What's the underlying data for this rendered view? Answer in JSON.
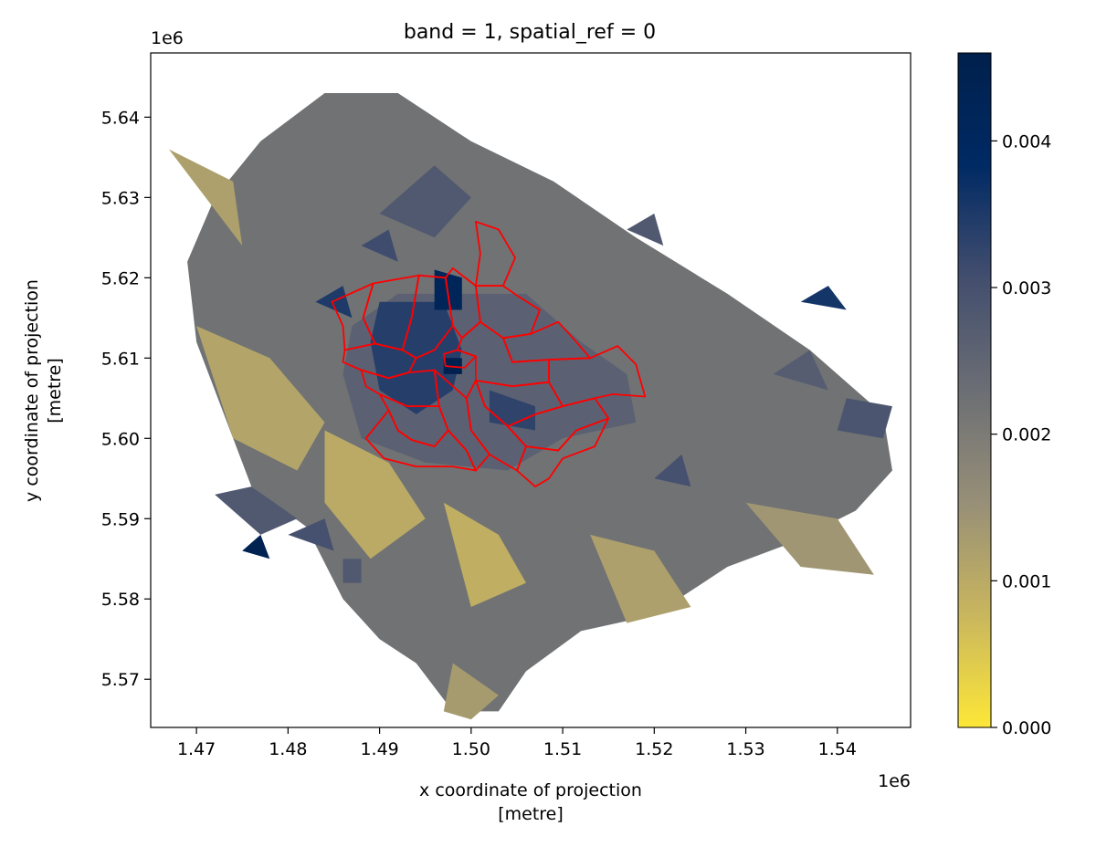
{
  "chart_data": {
    "type": "heatmap",
    "title": "band = 1, spatial_ref = 0",
    "xlabel": [
      "x coordinate of projection",
      "[metre]"
    ],
    "ylabel": [
      "y coordinate of projection",
      "[metre]"
    ],
    "x_offset_label": "1e6",
    "y_offset_label": "1e6",
    "xlim": [
      1.465,
      1.548
    ],
    "ylim": [
      5.564,
      5.648
    ],
    "x_ticks": [
      1.47,
      1.48,
      1.49,
      1.5,
      1.51,
      1.52,
      1.53,
      1.54
    ],
    "x_tick_labels": [
      "1.47",
      "1.48",
      "1.49",
      "1.50",
      "1.51",
      "1.52",
      "1.53",
      "1.54"
    ],
    "y_ticks": [
      5.57,
      5.58,
      5.59,
      5.6,
      5.61,
      5.62,
      5.63,
      5.64
    ],
    "y_tick_labels": [
      "5.57",
      "5.58",
      "5.59",
      "5.60",
      "5.61",
      "5.62",
      "5.63",
      "5.64"
    ],
    "colorbar": {
      "colormap": "cividis_r",
      "range": [
        0,
        0.0046
      ],
      "ticks": [
        0,
        0.001,
        0.002,
        0.003,
        0.004
      ],
      "tick_labels": [
        "0.000",
        "0.001",
        "0.002",
        "0.003",
        "0.004"
      ],
      "colors": [
        "#fde738",
        "#c9b65e",
        "#978f77",
        "#6b6e74",
        "#434e6e",
        "#002a64",
        "#00204c"
      ]
    },
    "grid": false,
    "overlay_color": "#ff0000",
    "regions": [
      {
        "value": 0.0022,
        "pts": [
          [
            1.473,
            5.603
          ],
          [
            1.476,
            5.594
          ],
          [
            1.482,
            5.589
          ],
          [
            1.486,
            5.58
          ],
          [
            1.49,
            5.575
          ],
          [
            1.494,
            5.572
          ],
          [
            1.498,
            5.566
          ],
          [
            1.503,
            5.566
          ],
          [
            1.506,
            5.571
          ],
          [
            1.512,
            5.576
          ],
          [
            1.52,
            5.578
          ],
          [
            1.528,
            5.584
          ],
          [
            1.535,
            5.587
          ],
          [
            1.542,
            5.591
          ],
          [
            1.546,
            5.596
          ],
          [
            1.545,
            5.603
          ],
          [
            1.537,
            5.611
          ],
          [
            1.528,
            5.618
          ],
          [
            1.518,
            5.625
          ],
          [
            1.509,
            5.632
          ],
          [
            1.5,
            5.637
          ],
          [
            1.492,
            5.643
          ],
          [
            1.484,
            5.643
          ],
          [
            1.477,
            5.637
          ],
          [
            1.472,
            5.63
          ],
          [
            1.469,
            5.622
          ],
          [
            1.47,
            5.612
          ]
        ]
      },
      {
        "value": 0.0012,
        "pts": [
          [
            1.467,
            5.636
          ],
          [
            1.471,
            5.63
          ],
          [
            1.475,
            5.624
          ],
          [
            1.474,
            5.632
          ]
        ]
      },
      {
        "value": 0.0011,
        "pts": [
          [
            1.47,
            5.614
          ],
          [
            1.478,
            5.61
          ],
          [
            1.484,
            5.602
          ],
          [
            1.481,
            5.596
          ],
          [
            1.474,
            5.6
          ]
        ]
      },
      {
        "value": 0.001,
        "pts": [
          [
            1.484,
            5.601
          ],
          [
            1.491,
            5.597
          ],
          [
            1.495,
            5.59
          ],
          [
            1.489,
            5.585
          ],
          [
            1.484,
            5.592
          ]
        ]
      },
      {
        "value": 0.0009,
        "pts": [
          [
            1.497,
            5.592
          ],
          [
            1.503,
            5.588
          ],
          [
            1.506,
            5.582
          ],
          [
            1.5,
            5.579
          ]
        ]
      },
      {
        "value": 0.0012,
        "pts": [
          [
            1.513,
            5.588
          ],
          [
            1.52,
            5.586
          ],
          [
            1.524,
            5.579
          ],
          [
            1.517,
            5.577
          ]
        ]
      },
      {
        "value": 0.0014,
        "pts": [
          [
            1.53,
            5.592
          ],
          [
            1.54,
            5.59
          ],
          [
            1.544,
            5.583
          ],
          [
            1.536,
            5.584
          ]
        ]
      },
      {
        "value": 0.0013,
        "pts": [
          [
            1.498,
            5.572
          ],
          [
            1.503,
            5.568
          ],
          [
            1.5,
            5.565
          ],
          [
            1.497,
            5.566
          ]
        ]
      },
      {
        "value": 0.0028,
        "pts": [
          [
            1.49,
            5.628
          ],
          [
            1.496,
            5.625
          ],
          [
            1.5,
            5.63
          ],
          [
            1.496,
            5.634
          ]
        ]
      },
      {
        "value": 0.0028,
        "pts": [
          [
            1.517,
            5.626
          ],
          [
            1.521,
            5.624
          ],
          [
            1.52,
            5.628
          ]
        ]
      },
      {
        "value": 0.0027,
        "pts": [
          [
            1.533,
            5.608
          ],
          [
            1.539,
            5.606
          ],
          [
            1.537,
            5.611
          ]
        ]
      },
      {
        "value": 0.0036,
        "pts": [
          [
            1.536,
            5.617
          ],
          [
            1.541,
            5.616
          ],
          [
            1.539,
            5.619
          ]
        ]
      },
      {
        "value": 0.0029,
        "pts": [
          [
            1.54,
            5.601
          ],
          [
            1.545,
            5.6
          ],
          [
            1.546,
            5.604
          ],
          [
            1.541,
            5.605
          ]
        ]
      },
      {
        "value": 0.003,
        "pts": [
          [
            1.52,
            5.595
          ],
          [
            1.524,
            5.594
          ],
          [
            1.523,
            5.598
          ]
        ]
      },
      {
        "value": 0.0028,
        "pts": [
          [
            1.472,
            5.593
          ],
          [
            1.477,
            5.588
          ],
          [
            1.481,
            5.59
          ],
          [
            1.476,
            5.594
          ]
        ]
      },
      {
        "value": 0.003,
        "pts": [
          [
            1.48,
            5.588
          ],
          [
            1.485,
            5.586
          ],
          [
            1.484,
            5.59
          ]
        ]
      },
      {
        "value": 0.0028,
        "pts": [
          [
            1.486,
            5.582
          ],
          [
            1.488,
            5.582
          ],
          [
            1.488,
            5.585
          ],
          [
            1.486,
            5.585
          ]
        ]
      },
      {
        "value": 0.0044,
        "pts": [
          [
            1.475,
            5.586
          ],
          [
            1.478,
            5.585
          ],
          [
            1.477,
            5.588
          ]
        ]
      },
      {
        "value": 0.0035,
        "pts": [
          [
            1.483,
            5.617
          ],
          [
            1.487,
            5.615
          ],
          [
            1.486,
            5.619
          ]
        ]
      },
      {
        "value": 0.0031,
        "pts": [
          [
            1.488,
            5.624
          ],
          [
            1.492,
            5.622
          ],
          [
            1.491,
            5.626
          ]
        ]
      },
      {
        "value": 0.0026,
        "pts": [
          [
            1.492,
            5.618
          ],
          [
            1.506,
            5.618
          ],
          [
            1.512,
            5.612
          ],
          [
            1.517,
            5.608
          ],
          [
            1.518,
            5.602
          ],
          [
            1.51,
            5.6
          ],
          [
            1.504,
            5.596
          ],
          [
            1.495,
            5.597
          ],
          [
            1.488,
            5.6
          ],
          [
            1.486,
            5.608
          ],
          [
            1.487,
            5.614
          ]
        ]
      },
      {
        "value": 0.0034,
        "pts": [
          [
            1.49,
            5.617
          ],
          [
            1.497,
            5.617
          ],
          [
            1.499,
            5.611
          ],
          [
            1.498,
            5.606
          ],
          [
            1.494,
            5.603
          ],
          [
            1.49,
            5.606
          ],
          [
            1.489,
            5.612
          ]
        ]
      },
      {
        "value": 0.0042,
        "pts": [
          [
            1.496,
            5.621
          ],
          [
            1.499,
            5.62
          ],
          [
            1.499,
            5.616
          ],
          [
            1.496,
            5.616
          ]
        ]
      },
      {
        "value": 0.0045,
        "pts": [
          [
            1.497,
            5.61
          ],
          [
            1.499,
            5.61
          ],
          [
            1.499,
            5.608
          ],
          [
            1.497,
            5.608
          ]
        ]
      },
      {
        "value": 0.0033,
        "pts": [
          [
            1.502,
            5.606
          ],
          [
            1.507,
            5.604
          ],
          [
            1.507,
            5.601
          ],
          [
            1.502,
            5.602
          ]
        ]
      }
    ],
    "boundaries": [
      [
        [
          1.497,
          5.6105
        ],
        [
          1.4985,
          5.611
        ],
        [
          1.5005,
          5.6102
        ],
        [
          1.4993,
          5.6088
        ],
        [
          1.4972,
          5.609
        ]
      ],
      [
        [
          1.4943,
          5.6203
        ],
        [
          1.4972,
          5.62
        ],
        [
          1.498,
          5.614
        ],
        [
          1.496,
          5.611
        ],
        [
          1.494,
          5.61
        ],
        [
          1.4925,
          5.611
        ],
        [
          1.4935,
          5.615
        ]
      ],
      [
        [
          1.4893,
          5.6193
        ],
        [
          1.4943,
          5.6203
        ],
        [
          1.4935,
          5.615
        ],
        [
          1.4925,
          5.611
        ],
        [
          1.4895,
          5.6118
        ],
        [
          1.4882,
          5.615
        ]
      ],
      [
        [
          1.4848,
          5.617
        ],
        [
          1.4893,
          5.6193
        ],
        [
          1.4882,
          5.615
        ],
        [
          1.4895,
          5.6118
        ],
        [
          1.4862,
          5.611
        ],
        [
          1.486,
          5.614
        ]
      ],
      [
        [
          1.4862,
          5.611
        ],
        [
          1.4895,
          5.6118
        ],
        [
          1.4925,
          5.611
        ],
        [
          1.494,
          5.61
        ],
        [
          1.4932,
          5.6082
        ],
        [
          1.491,
          5.6075
        ],
        [
          1.488,
          5.6085
        ],
        [
          1.486,
          5.6095
        ]
      ],
      [
        [
          1.4972,
          5.62
        ],
        [
          1.498,
          5.6212
        ],
        [
          1.5005,
          5.619
        ],
        [
          1.501,
          5.6145
        ],
        [
          1.499,
          5.6125
        ],
        [
          1.498,
          5.614
        ]
      ],
      [
        [
          1.5005,
          5.627
        ],
        [
          1.503,
          5.626
        ],
        [
          1.5048,
          5.6225
        ],
        [
          1.5035,
          5.619
        ],
        [
          1.5005,
          5.619
        ],
        [
          1.501,
          5.623
        ]
      ],
      [
        [
          1.5005,
          5.619
        ],
        [
          1.5035,
          5.619
        ],
        [
          1.505,
          5.6178
        ],
        [
          1.5075,
          5.616
        ],
        [
          1.5065,
          5.613
        ],
        [
          1.5035,
          5.6125
        ],
        [
          1.501,
          5.6145
        ]
      ],
      [
        [
          1.5065,
          5.613
        ],
        [
          1.5095,
          5.6145
        ],
        [
          1.5115,
          5.612
        ],
        [
          1.513,
          5.61
        ],
        [
          1.5085,
          5.6098
        ],
        [
          1.5045,
          5.6095
        ],
        [
          1.5035,
          5.6125
        ]
      ],
      [
        [
          1.513,
          5.61
        ],
        [
          1.516,
          5.6115
        ],
        [
          1.518,
          5.6092
        ],
        [
          1.519,
          5.6052
        ],
        [
          1.5155,
          5.6055
        ],
        [
          1.5135,
          5.605
        ],
        [
          1.51,
          5.604
        ],
        [
          1.5085,
          5.607
        ],
        [
          1.5085,
          5.6098
        ]
      ],
      [
        [
          1.499,
          5.6125
        ],
        [
          1.501,
          5.6145
        ],
        [
          1.5035,
          5.6125
        ],
        [
          1.5045,
          5.6095
        ],
        [
          1.5085,
          5.6098
        ],
        [
          1.5085,
          5.607
        ],
        [
          1.5045,
          5.6065
        ],
        [
          1.5005,
          5.6072
        ],
        [
          1.5005,
          5.6102
        ],
        [
          1.4985,
          5.611
        ]
      ],
      [
        [
          1.5005,
          5.6072
        ],
        [
          1.5045,
          5.6065
        ],
        [
          1.5085,
          5.607
        ],
        [
          1.51,
          5.604
        ],
        [
          1.507,
          5.603
        ],
        [
          1.504,
          5.6015
        ],
        [
          1.5015,
          5.604
        ]
      ],
      [
        [
          1.504,
          5.6015
        ],
        [
          1.507,
          5.603
        ],
        [
          1.51,
          5.604
        ],
        [
          1.5135,
          5.605
        ],
        [
          1.515,
          5.6025
        ],
        [
          1.5115,
          5.601
        ],
        [
          1.5095,
          5.5985
        ],
        [
          1.506,
          5.599
        ]
      ],
      [
        [
          1.506,
          5.599
        ],
        [
          1.5095,
          5.5985
        ],
        [
          1.5115,
          5.601
        ],
        [
          1.515,
          5.6025
        ],
        [
          1.5135,
          5.599
        ],
        [
          1.51,
          5.5975
        ],
        [
          1.5085,
          5.595
        ],
        [
          1.507,
          5.594
        ],
        [
          1.505,
          5.596
        ]
      ],
      [
        [
          1.5015,
          5.604
        ],
        [
          1.504,
          5.6015
        ],
        [
          1.506,
          5.599
        ],
        [
          1.505,
          5.596
        ],
        [
          1.502,
          5.598
        ],
        [
          1.5,
          5.601
        ],
        [
          1.4995,
          5.605
        ],
        [
          1.5005,
          5.6072
        ]
      ],
      [
        [
          1.496,
          5.6085
        ],
        [
          1.4995,
          5.605
        ],
        [
          1.5,
          5.601
        ],
        [
          1.502,
          5.598
        ],
        [
          1.5005,
          5.596
        ],
        [
          1.4995,
          5.5985
        ],
        [
          1.4975,
          5.601
        ],
        [
          1.4965,
          5.604
        ]
      ],
      [
        [
          1.488,
          5.6085
        ],
        [
          1.491,
          5.6075
        ],
        [
          1.4932,
          5.6082
        ],
        [
          1.496,
          5.6085
        ],
        [
          1.4965,
          5.604
        ],
        [
          1.493,
          5.604
        ],
        [
          1.49,
          5.6055
        ],
        [
          1.4885,
          5.6065
        ]
      ],
      [
        [
          1.49,
          5.6055
        ],
        [
          1.493,
          5.604
        ],
        [
          1.4965,
          5.604
        ],
        [
          1.4975,
          5.601
        ],
        [
          1.496,
          5.599
        ],
        [
          1.4935,
          5.5998
        ],
        [
          1.492,
          5.601
        ],
        [
          1.491,
          5.6035
        ]
      ],
      [
        [
          1.4885,
          5.6
        ],
        [
          1.491,
          5.6035
        ],
        [
          1.492,
          5.601
        ],
        [
          1.4935,
          5.5998
        ],
        [
          1.496,
          5.599
        ],
        [
          1.4975,
          5.601
        ],
        [
          1.4995,
          5.5985
        ],
        [
          1.5005,
          5.596
        ],
        [
          1.498,
          5.5965
        ],
        [
          1.494,
          5.5965
        ],
        [
          1.4905,
          5.5975
        ]
      ]
    ]
  }
}
